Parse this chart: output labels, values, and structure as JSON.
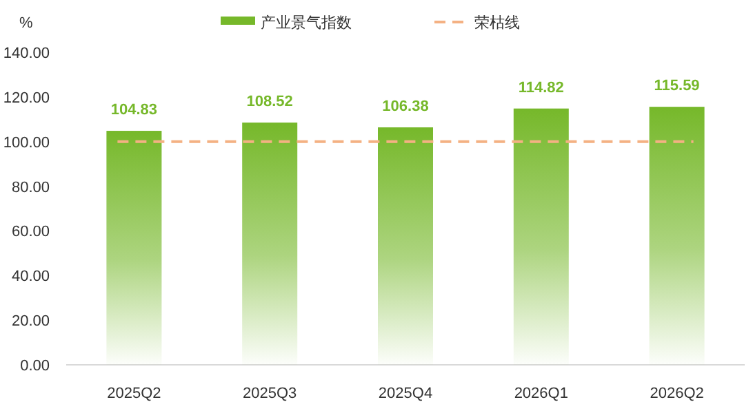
{
  "chart_data": {
    "type": "bar",
    "ylabel": "%",
    "categories": [
      "2025Q2",
      "2025Q3",
      "2025Q4",
      "2026Q1",
      "2026Q2"
    ],
    "series": [
      {
        "name": "产业景气指数",
        "color": "#76b82a",
        "values": [
          104.83,
          108.52,
          106.38,
          114.82,
          115.59
        ]
      }
    ],
    "ylim": [
      0,
      140
    ],
    "yticks": [
      {
        "value": 0,
        "label": "0.00"
      },
      {
        "value": 20,
        "label": "20.00"
      },
      {
        "value": 40,
        "label": "40.00"
      },
      {
        "value": 60,
        "label": "60.00"
      },
      {
        "value": 80,
        "label": "80.00"
      },
      {
        "value": 100,
        "label": "100.00"
      },
      {
        "value": 120,
        "label": "120.00"
      },
      {
        "value": 140,
        "label": "140.00"
      }
    ],
    "ref_lines": [
      {
        "axis": "y",
        "value": 100,
        "label": "荣枯线",
        "color": "#f4b183",
        "line_style": "dashed"
      }
    ],
    "data_labels": true,
    "legend": "top",
    "grid": false
  }
}
